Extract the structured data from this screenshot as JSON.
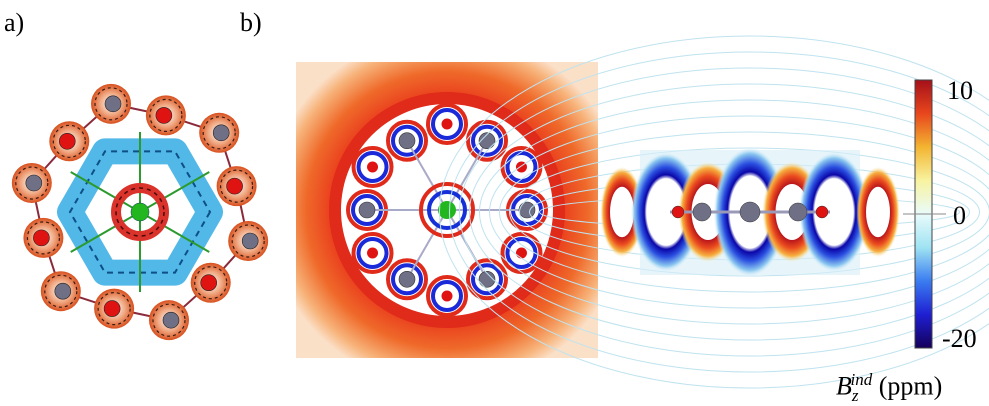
{
  "panel_labels": {
    "a": "a)",
    "b": "b)"
  },
  "colorbar": {
    "max_label": "10",
    "zero_label": "0",
    "min_label": "-20",
    "title_symbol": "B",
    "title_sub": "z",
    "title_sup": "ind",
    "title_unit": "(ppm)",
    "range": [
      -20,
      10
    ],
    "colors": [
      "#14005a",
      "#1f1fd2",
      "#3a7cf0",
      "#9fe3f3",
      "#e9fbfb",
      "#f8f3a0",
      "#f3b431",
      "#e8461c",
      "#a5101a"
    ]
  },
  "atom_colors": {
    "central": "#22b61f",
    "ring": "#6f6f86",
    "outer": "#e01313"
  }
}
